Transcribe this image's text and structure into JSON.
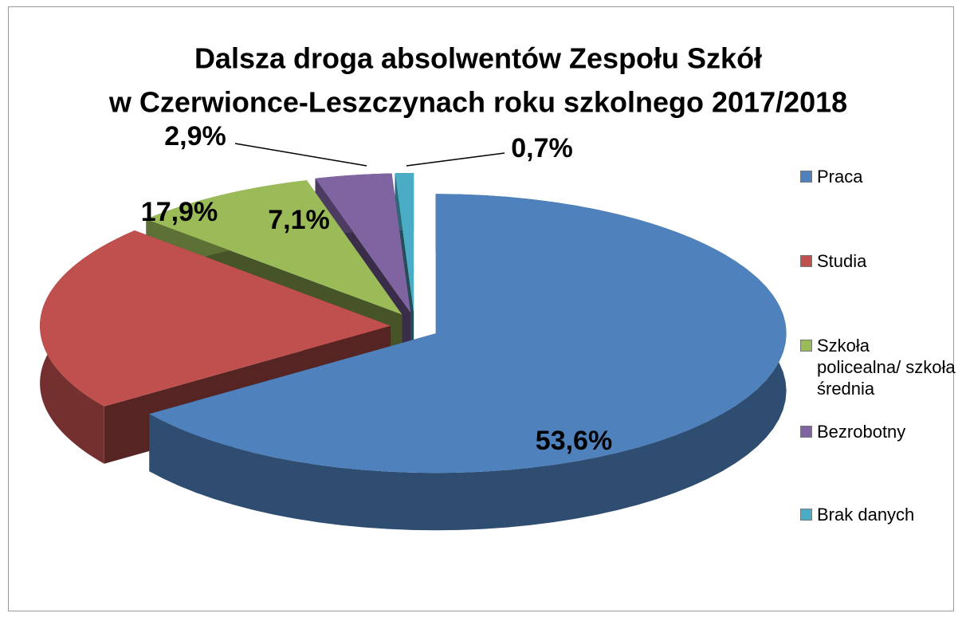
{
  "chart_data": {
    "type": "pie3d",
    "title": [
      "Dalsza droga absolwentów Zespołu Szkół",
      "w Czerwionce-Leszczynach roku szkolnego 2017/2018"
    ],
    "categories": [
      "Praca",
      "Studia",
      "Szkoła policealna/ szkoła średnia",
      "Bezrobotny",
      "Brak danych"
    ],
    "values": [
      53.6,
      17.9,
      7.1,
      2.9,
      0.7
    ],
    "value_labels": [
      "53,6%",
      "17,9%",
      "7,1%",
      "2,9%",
      "0,7%"
    ],
    "colors": [
      "#4f81bd",
      "#c0504d",
      "#9bbb59",
      "#8064a2",
      "#4bacc6"
    ],
    "legend": "right"
  }
}
